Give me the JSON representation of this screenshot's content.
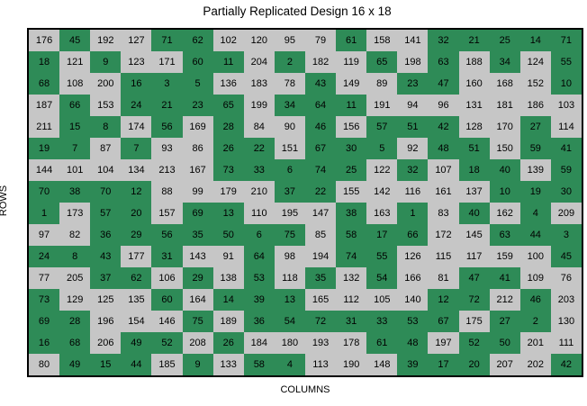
{
  "title": "Partially Replicated Design 16 x 18",
  "axes": {
    "xlabel": "COLUMNS",
    "ylabel": "ROWS"
  },
  "colors": {
    "replicated_green": "#2E8B57",
    "unreplicated_gray": "#C6C6C6",
    "border": "#000000",
    "background": "#FFFFFF",
    "text": "#000000"
  },
  "chart_data": {
    "type": "heatmap",
    "title": "Partially Replicated Design 16 x 18",
    "xlabel": "COLUMNS",
    "ylabel": "ROWS",
    "rows": 16,
    "cols": 18,
    "legend": "none",
    "cell_color_key": {
      "1": "#2E8B57",
      "0": "#C6C6C6"
    },
    "values": [
      [
        176,
        45,
        192,
        127,
        71,
        62,
        102,
        120,
        95,
        79,
        61,
        158,
        141,
        32,
        21,
        25,
        14,
        71
      ],
      [
        18,
        121,
        9,
        123,
        171,
        60,
        11,
        204,
        2,
        182,
        119,
        65,
        198,
        63,
        188,
        34,
        124,
        55
      ],
      [
        68,
        108,
        200,
        16,
        3,
        5,
        136,
        183,
        78,
        43,
        149,
        89,
        23,
        47,
        160,
        168,
        152,
        10
      ],
      [
        187,
        66,
        153,
        24,
        21,
        23,
        65,
        199,
        34,
        64,
        11,
        191,
        94,
        96,
        131,
        181,
        186,
        103
      ],
      [
        211,
        15,
        8,
        174,
        56,
        169,
        28,
        84,
        90,
        46,
        156,
        57,
        51,
        42,
        128,
        170,
        27,
        114
      ],
      [
        19,
        7,
        87,
        7,
        93,
        86,
        26,
        22,
        151,
        67,
        30,
        5,
        92,
        48,
        51,
        150,
        59,
        41
      ],
      [
        144,
        101,
        104,
        134,
        213,
        167,
        73,
        33,
        6,
        74,
        25,
        122,
        32,
        107,
        18,
        40,
        139,
        59
      ],
      [
        70,
        38,
        70,
        12,
        88,
        99,
        179,
        210,
        37,
        22,
        155,
        142,
        116,
        161,
        137,
        10,
        19,
        30
      ],
      [
        1,
        173,
        57,
        20,
        157,
        69,
        13,
        110,
        195,
        147,
        38,
        163,
        1,
        83,
        40,
        162,
        4,
        209
      ],
      [
        97,
        82,
        36,
        29,
        56,
        35,
        50,
        6,
        75,
        85,
        58,
        17,
        66,
        172,
        145,
        63,
        44,
        3
      ],
      [
        24,
        8,
        43,
        177,
        31,
        143,
        91,
        64,
        98,
        194,
        74,
        55,
        126,
        115,
        117,
        159,
        100,
        45
      ],
      [
        77,
        205,
        37,
        62,
        106,
        29,
        138,
        53,
        118,
        35,
        132,
        54,
        166,
        81,
        47,
        41,
        109,
        76
      ],
      [
        73,
        129,
        125,
        135,
        60,
        164,
        14,
        39,
        13,
        165,
        112,
        105,
        140,
        12,
        72,
        212,
        46,
        203
      ],
      [
        69,
        28,
        196,
        154,
        146,
        75,
        189,
        36,
        54,
        72,
        31,
        33,
        53,
        67,
        175,
        27,
        2,
        130
      ],
      [
        16,
        68,
        206,
        49,
        52,
        208,
        26,
        184,
        180,
        193,
        178,
        61,
        48,
        197,
        52,
        50,
        201,
        111
      ],
      [
        80,
        49,
        15,
        44,
        185,
        9,
        133,
        58,
        4,
        113,
        190,
        148,
        39,
        17,
        20,
        207,
        202,
        42
      ]
    ],
    "green_mask": [
      [
        0,
        1,
        0,
        0,
        1,
        1,
        0,
        0,
        0,
        0,
        1,
        0,
        0,
        1,
        1,
        1,
        1,
        1
      ],
      [
        1,
        0,
        1,
        0,
        0,
        1,
        1,
        0,
        1,
        0,
        0,
        1,
        0,
        1,
        0,
        1,
        0,
        1
      ],
      [
        1,
        0,
        0,
        1,
        1,
        1,
        0,
        0,
        0,
        1,
        0,
        0,
        1,
        1,
        0,
        0,
        0,
        1
      ],
      [
        0,
        1,
        0,
        1,
        1,
        1,
        1,
        0,
        1,
        1,
        1,
        0,
        0,
        0,
        0,
        0,
        0,
        0
      ],
      [
        0,
        1,
        1,
        0,
        1,
        0,
        1,
        0,
        0,
        1,
        0,
        1,
        1,
        1,
        0,
        0,
        1,
        0
      ],
      [
        1,
        1,
        0,
        1,
        0,
        0,
        1,
        1,
        0,
        1,
        1,
        1,
        0,
        1,
        1,
        0,
        1,
        1
      ],
      [
        0,
        0,
        0,
        0,
        0,
        0,
        1,
        1,
        1,
        1,
        1,
        0,
        1,
        0,
        1,
        1,
        0,
        1
      ],
      [
        1,
        1,
        1,
        1,
        0,
        0,
        0,
        0,
        1,
        1,
        0,
        0,
        0,
        0,
        0,
        1,
        1,
        1
      ],
      [
        1,
        0,
        1,
        1,
        0,
        1,
        1,
        0,
        0,
        0,
        1,
        0,
        1,
        0,
        1,
        0,
        1,
        0
      ],
      [
        0,
        0,
        1,
        1,
        1,
        1,
        1,
        1,
        1,
        0,
        1,
        1,
        1,
        0,
        0,
        1,
        1,
        1
      ],
      [
        1,
        1,
        1,
        0,
        1,
        0,
        0,
        1,
        0,
        0,
        1,
        1,
        0,
        0,
        0,
        0,
        0,
        1
      ],
      [
        0,
        0,
        1,
        1,
        0,
        1,
        0,
        1,
        0,
        1,
        0,
        1,
        0,
        0,
        1,
        1,
        0,
        0
      ],
      [
        1,
        0,
        0,
        0,
        1,
        0,
        1,
        1,
        1,
        0,
        0,
        0,
        0,
        1,
        1,
        0,
        1,
        0
      ],
      [
        1,
        1,
        0,
        0,
        0,
        1,
        0,
        1,
        1,
        1,
        1,
        1,
        1,
        1,
        0,
        1,
        1,
        0
      ],
      [
        1,
        1,
        0,
        1,
        1,
        0,
        1,
        0,
        0,
        0,
        0,
        1,
        1,
        0,
        1,
        1,
        0,
        0
      ],
      [
        0,
        1,
        1,
        1,
        0,
        1,
        0,
        1,
        1,
        0,
        0,
        0,
        1,
        1,
        1,
        0,
        0,
        1
      ]
    ]
  }
}
